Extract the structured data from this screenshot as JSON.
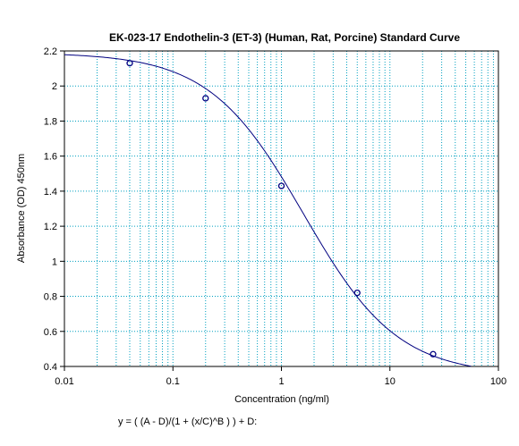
{
  "chart_data": {
    "type": "scatter",
    "title": "EK-023-17 Endothelin-3 (ET-3) (Human, Rat, Porcine) Standard Curve",
    "xlabel": "Concentration (ng/ml)",
    "ylabel": "Absorbance (OD) 450nm",
    "xscale": "log",
    "xlim": [
      0.01,
      100
    ],
    "ylim": [
      0.4,
      2.2
    ],
    "grid": true,
    "xticks": [
      0.01,
      0.1,
      1,
      10,
      100
    ],
    "xtick_labels": [
      "0.01",
      "0.1",
      "1",
      "10",
      "100"
    ],
    "yticks": [
      0.4,
      0.6,
      0.8,
      1.0,
      1.2,
      1.4,
      1.6,
      1.8,
      2.0,
      2.2
    ],
    "ytick_labels": [
      "0.4",
      "0.6",
      "0.8",
      "1",
      "1.2",
      "1.4",
      "1.6",
      "1.8",
      "2",
      "2.2"
    ],
    "series": [
      {
        "kind": "points",
        "x": [
          0.04,
          0.2,
          1,
          5,
          25
        ],
        "y": [
          2.13,
          1.93,
          1.43,
          0.82,
          0.47
        ]
      },
      {
        "kind": "fitted-curve",
        "model": "4PL",
        "params": {
          "A": 2.19,
          "B": 1.0,
          "C": 1.6,
          "D": 0.35
        }
      }
    ],
    "formula": "y = ( (A - D)/(1 + (x/C)^B ) ) + D:",
    "colors": {
      "curve": "#000080",
      "points": "#000080",
      "grid": "#00a0c0",
      "axes": "#000000"
    }
  }
}
